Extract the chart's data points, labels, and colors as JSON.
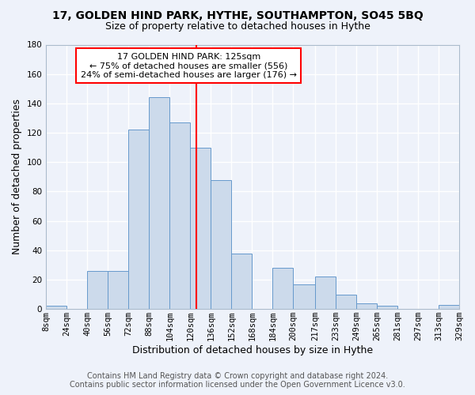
{
  "title": "17, GOLDEN HIND PARK, HYTHE, SOUTHAMPTON, SO45 5BQ",
  "subtitle": "Size of property relative to detached houses in Hythe",
  "xlabel": "Distribution of detached houses by size in Hythe",
  "ylabel": "Number of detached properties",
  "bar_color": "#ccdaeb",
  "bar_edge_color": "#6699cc",
  "background_color": "#eef2fa",
  "grid_color": "white",
  "vline_x": 125,
  "vline_color": "red",
  "bins": [
    8,
    24,
    40,
    56,
    72,
    88,
    104,
    120,
    136,
    152,
    168,
    184,
    200,
    217,
    233,
    249,
    265,
    281,
    297,
    313,
    329
  ],
  "counts": [
    2,
    0,
    26,
    26,
    122,
    144,
    127,
    110,
    88,
    38,
    0,
    28,
    17,
    22,
    10,
    4,
    2,
    0,
    0,
    3
  ],
  "ylim": [
    0,
    180
  ],
  "yticks": [
    0,
    20,
    40,
    60,
    80,
    100,
    120,
    140,
    160,
    180
  ],
  "xtick_labels": [
    "8sqm",
    "24sqm",
    "40sqm",
    "56sqm",
    "72sqm",
    "88sqm",
    "104sqm",
    "120sqm",
    "136sqm",
    "152sqm",
    "168sqm",
    "184sqm",
    "200sqm",
    "217sqm",
    "233sqm",
    "249sqm",
    "265sqm",
    "281sqm",
    "297sqm",
    "313sqm",
    "329sqm"
  ],
  "annotation_box_text": [
    "17 GOLDEN HIND PARK: 125sqm",
    "← 75% of detached houses are smaller (556)",
    "24% of semi-detached houses are larger (176) →"
  ],
  "annotation_box_color": "red",
  "footer_lines": [
    "Contains HM Land Registry data © Crown copyright and database right 2024.",
    "Contains public sector information licensed under the Open Government Licence v3.0."
  ],
  "title_fontsize": 10,
  "subtitle_fontsize": 9,
  "axis_label_fontsize": 9,
  "tick_fontsize": 7.5,
  "annotation_fontsize": 8,
  "footer_fontsize": 7
}
